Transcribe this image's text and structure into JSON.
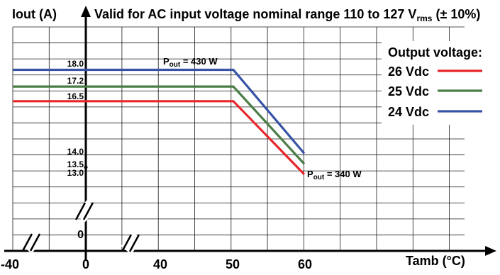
{
  "chart_data": {
    "type": "line",
    "title": "Valid for AC input voltage nominal range 110 to 127 V",
    "title_sub": "rms",
    "title_tail": " (± 10%)",
    "ylabel": "Iout (A)",
    "xlabel": "Tamb (°C)",
    "xlim": [
      -40,
      78
    ],
    "ylim": [
      0,
      21
    ],
    "grid": true,
    "x_ticks": [
      "-40",
      "0",
      "40",
      "50",
      "60"
    ],
    "y_ticks": [
      {
        "label": "18.0",
        "value": 18.0
      },
      {
        "label": "17.2",
        "value": 17.2
      },
      {
        "label": "16.5",
        "value": 16.5
      },
      {
        "label": "14.0",
        "value": 14.0
      },
      {
        "label": "13.5",
        "value": 13.5
      },
      {
        "label": "13.0",
        "value": 13.0
      },
      {
        "label": "0",
        "value": 0
      }
    ],
    "legend_title": "Output voltage:",
    "legend_position": "top-right",
    "series": [
      {
        "name": "26 Vdc",
        "color": "#e8262a",
        "x": [
          -40,
          50,
          60
        ],
        "y": [
          16.5,
          16.5,
          13.0
        ]
      },
      {
        "name": "25 Vdc",
        "color": "#4a7d45",
        "x": [
          -40,
          50,
          60
        ],
        "y": [
          17.2,
          17.2,
          13.5
        ]
      },
      {
        "name": "24 Vdc",
        "color": "#3753a5",
        "x": [
          -40,
          50,
          60
        ],
        "y": [
          18.0,
          18.0,
          14.0
        ]
      }
    ],
    "annotations": [
      {
        "main": "P",
        "sub": "out",
        "tail": " = 430 W",
        "x": 50,
        "y": 18.0,
        "anchor": "above-left"
      },
      {
        "main": "P",
        "sub": "out",
        "tail": " = 340 W",
        "x": 60,
        "y": 13.5,
        "anchor": "right"
      }
    ]
  }
}
